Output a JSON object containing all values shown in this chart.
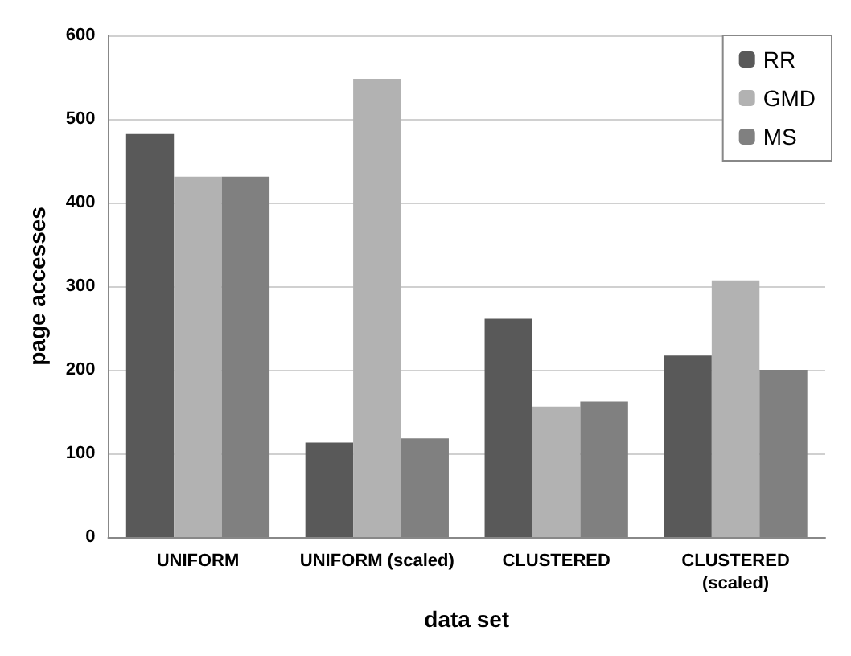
{
  "chart_data": {
    "type": "bar",
    "xlabel": "data set",
    "ylabel": "page accesses",
    "categories": [
      "UNIFORM",
      "UNIFORM (scaled)",
      "CLUSTERED",
      "CLUSTERED\n(scaled)"
    ],
    "series": [
      {
        "name": "RR",
        "color": "#595959",
        "values": [
          482,
          113,
          261,
          217
        ]
      },
      {
        "name": "GMD",
        "color": "#b2b2b2",
        "values": [
          431,
          548,
          156,
          307
        ]
      },
      {
        "name": "MS",
        "color": "#808080",
        "values": [
          431,
          118,
          162,
          200
        ]
      }
    ],
    "ylim": [
      0,
      600
    ],
    "yticks": [
      0,
      100,
      200,
      300,
      400,
      500,
      600
    ],
    "grid": "y",
    "legend": "top right"
  }
}
